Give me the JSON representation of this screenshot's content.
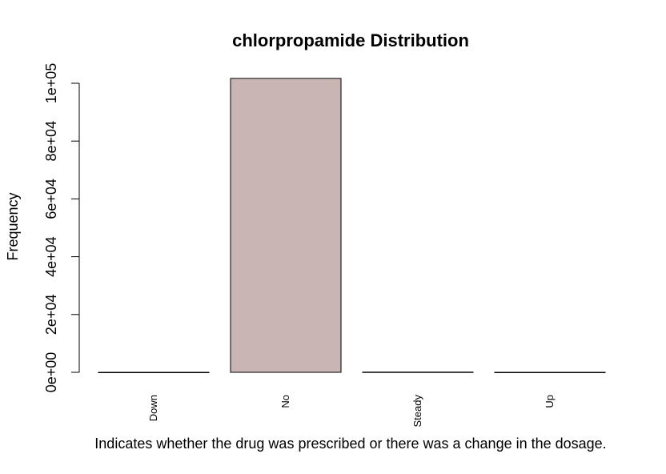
{
  "chart_data": {
    "type": "bar",
    "title": "chlorpropamide Distribution",
    "xlabel": "Indicates whether the drug was prescribed or there was a change in the dosage.",
    "ylabel": "Frequency",
    "categories": [
      "Down",
      "No",
      "Steady",
      "Up"
    ],
    "values": [
      1,
      101680,
      79,
      6
    ],
    "ylim": [
      0,
      100000
    ],
    "yticks": [
      0,
      20000,
      40000,
      60000,
      80000,
      100000
    ],
    "ytick_labels": [
      "0e+00",
      "2e+04",
      "4e+04",
      "6e+04",
      "8e+04",
      "1e+05"
    ],
    "bar_color": "#C9B6B4",
    "grid": false
  }
}
